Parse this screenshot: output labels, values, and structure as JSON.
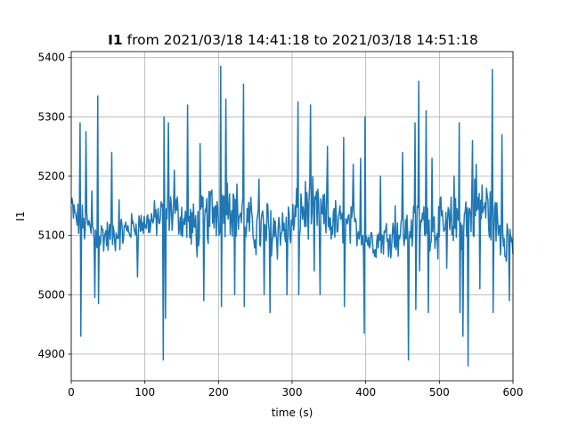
{
  "chart_data": {
    "type": "line",
    "title_bold": "I1",
    "title_rest": " from 2021/03/18 14:41:18 to 2021/03/18 14:51:18",
    "xlabel": "time (s)",
    "ylabel": "I1",
    "xlim": [
      0,
      600
    ],
    "ylim": [
      4855,
      5410
    ],
    "x_ticks": [
      0,
      100,
      200,
      300,
      400,
      500,
      600
    ],
    "y_ticks": [
      4900,
      5000,
      5100,
      5200,
      5300,
      5400
    ],
    "grid": true,
    "series": [
      {
        "color": "#1f77b4",
        "sample_interval_s": 1,
        "baseline": [
          [
            0,
            5150
          ],
          [
            5,
            5130
          ],
          [
            10,
            5125
          ],
          [
            20,
            5115
          ],
          [
            30,
            5105
          ],
          [
            40,
            5100
          ],
          [
            50,
            5098
          ],
          [
            60,
            5100
          ],
          [
            70,
            5105
          ],
          [
            80,
            5112
          ],
          [
            90,
            5118
          ],
          [
            100,
            5120
          ],
          [
            110,
            5125
          ],
          [
            120,
            5130
          ],
          [
            130,
            5135
          ],
          [
            140,
            5140
          ],
          [
            150,
            5130
          ],
          [
            160,
            5115
          ],
          [
            170,
            5110
          ],
          [
            180,
            5120
          ],
          [
            190,
            5140
          ],
          [
            200,
            5148
          ],
          [
            210,
            5155
          ],
          [
            220,
            5150
          ],
          [
            230,
            5135
          ],
          [
            240,
            5120
          ],
          [
            250,
            5110
          ],
          [
            260,
            5110
          ],
          [
            270,
            5115
          ],
          [
            280,
            5110
          ],
          [
            290,
            5110
          ],
          [
            300,
            5115
          ],
          [
            310,
            5140
          ],
          [
            320,
            5145
          ],
          [
            330,
            5140
          ],
          [
            340,
            5130
          ],
          [
            350,
            5125
          ],
          [
            360,
            5120
          ],
          [
            370,
            5115
          ],
          [
            380,
            5115
          ],
          [
            390,
            5110
          ],
          [
            400,
            5095
          ],
          [
            410,
            5090
          ],
          [
            420,
            5092
          ],
          [
            430,
            5100
          ],
          [
            440,
            5100
          ],
          [
            450,
            5105
          ],
          [
            460,
            5110
          ],
          [
            470,
            5120
          ],
          [
            480,
            5125
          ],
          [
            490,
            5118
          ],
          [
            500,
            5112
          ],
          [
            510,
            5115
          ],
          [
            520,
            5120
          ],
          [
            530,
            5125
          ],
          [
            540,
            5135
          ],
          [
            550,
            5145
          ],
          [
            560,
            5150
          ],
          [
            570,
            5135
          ],
          [
            580,
            5115
          ],
          [
            590,
            5100
          ],
          [
            600,
            5095
          ]
        ],
        "amplitude": [
          [
            0,
            25
          ],
          [
            30,
            30
          ],
          [
            60,
            25
          ],
          [
            90,
            20
          ],
          [
            110,
            25
          ],
          [
            130,
            35
          ],
          [
            150,
            30
          ],
          [
            170,
            40
          ],
          [
            190,
            45
          ],
          [
            210,
            45
          ],
          [
            230,
            40
          ],
          [
            250,
            40
          ],
          [
            270,
            45
          ],
          [
            300,
            40
          ],
          [
            320,
            45
          ],
          [
            340,
            40
          ],
          [
            360,
            35
          ],
          [
            380,
            30
          ],
          [
            400,
            25
          ],
          [
            420,
            25
          ],
          [
            440,
            30
          ],
          [
            460,
            30
          ],
          [
            480,
            35
          ],
          [
            500,
            40
          ],
          [
            520,
            40
          ],
          [
            540,
            45
          ],
          [
            560,
            50
          ],
          [
            580,
            40
          ],
          [
            600,
            35
          ]
        ],
        "spikes": [
          [
            12,
            5290
          ],
          [
            13,
            4930
          ],
          [
            20,
            5275
          ],
          [
            28,
            5175
          ],
          [
            32,
            4995
          ],
          [
            36,
            5335
          ],
          [
            37,
            4985
          ],
          [
            55,
            5240
          ],
          [
            65,
            5160
          ],
          [
            90,
            5030
          ],
          [
            125,
            4890
          ],
          [
            126,
            5300
          ],
          [
            128,
            4960
          ],
          [
            132,
            5290
          ],
          [
            140,
            5210
          ],
          [
            158,
            5320
          ],
          [
            175,
            5255
          ],
          [
            180,
            4990
          ],
          [
            203,
            5385
          ],
          [
            204,
            4980
          ],
          [
            210,
            5330
          ],
          [
            215,
            5170
          ],
          [
            222,
            5000
          ],
          [
            234,
            5355
          ],
          [
            235,
            4980
          ],
          [
            255,
            5195
          ],
          [
            262,
            5000
          ],
          [
            270,
            4970
          ],
          [
            293,
            5000
          ],
          [
            308,
            5325
          ],
          [
            309,
            5000
          ],
          [
            325,
            5320
          ],
          [
            330,
            5040
          ],
          [
            338,
            5000
          ],
          [
            348,
            5250
          ],
          [
            370,
            5265
          ],
          [
            371,
            4980
          ],
          [
            383,
            5220
          ],
          [
            393,
            5230
          ],
          [
            398,
            4935
          ],
          [
            399,
            5300
          ],
          [
            420,
            5200
          ],
          [
            440,
            5150
          ],
          [
            450,
            5240
          ],
          [
            458,
            4890
          ],
          [
            467,
            5290
          ],
          [
            468,
            4975
          ],
          [
            472,
            5360
          ],
          [
            473,
            5040
          ],
          [
            482,
            5310
          ],
          [
            485,
            4970
          ],
          [
            490,
            5230
          ],
          [
            510,
            5045
          ],
          [
            520,
            5200
          ],
          [
            527,
            5290
          ],
          [
            528,
            4970
          ],
          [
            532,
            4930
          ],
          [
            539,
            4880
          ],
          [
            545,
            5260
          ],
          [
            550,
            5220
          ],
          [
            555,
            5010
          ],
          [
            572,
            5380
          ],
          [
            573,
            4970
          ],
          [
            585,
            5270
          ],
          [
            595,
            4990
          ]
        ]
      }
    ]
  }
}
